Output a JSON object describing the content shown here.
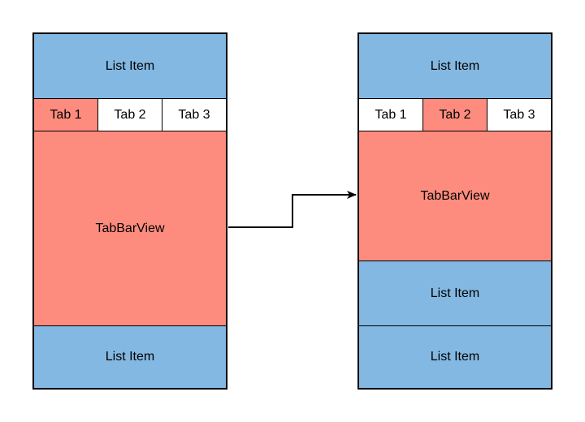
{
  "colors": {
    "list_item": "#83b8e2",
    "tab_view": "#fe8c7e",
    "selected_tab": "#fe8c7e",
    "border": "#000000"
  },
  "left": {
    "top_item": "List Item",
    "tabs": [
      "Tab 1",
      "Tab 2",
      "Tab 3"
    ],
    "selected_tab": "Tab 1",
    "tab_view": "TabBarView",
    "bottom_item": "List Item"
  },
  "right": {
    "top_item": "List Item",
    "tabs": [
      "Tab 1",
      "Tab 2",
      "Tab 3"
    ],
    "selected_tab": "Tab 2",
    "tab_view": "TabBarView",
    "bottom_items": [
      "List Item",
      "List Item"
    ]
  }
}
